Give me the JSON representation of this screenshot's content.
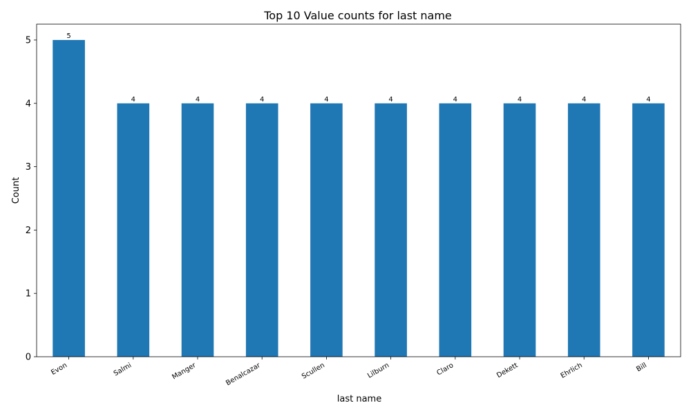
{
  "chart_data": {
    "type": "bar",
    "title": "Top 10 Value counts for last name",
    "xlabel": "last name",
    "ylabel": "Count",
    "categories": [
      "Evon",
      "Salmi",
      "Manger",
      "Benalcazar",
      "Scullen",
      "Lilburn",
      "Claro",
      "Dekett",
      "Ehrlich",
      "Bill"
    ],
    "values": [
      5,
      4,
      4,
      4,
      4,
      4,
      4,
      4,
      4,
      4
    ],
    "ylim": [
      0,
      5.25
    ],
    "yticks": [
      0,
      1,
      2,
      3,
      4,
      5
    ],
    "bar_color": "#1f77b4",
    "grid": false,
    "data_labels": true
  }
}
